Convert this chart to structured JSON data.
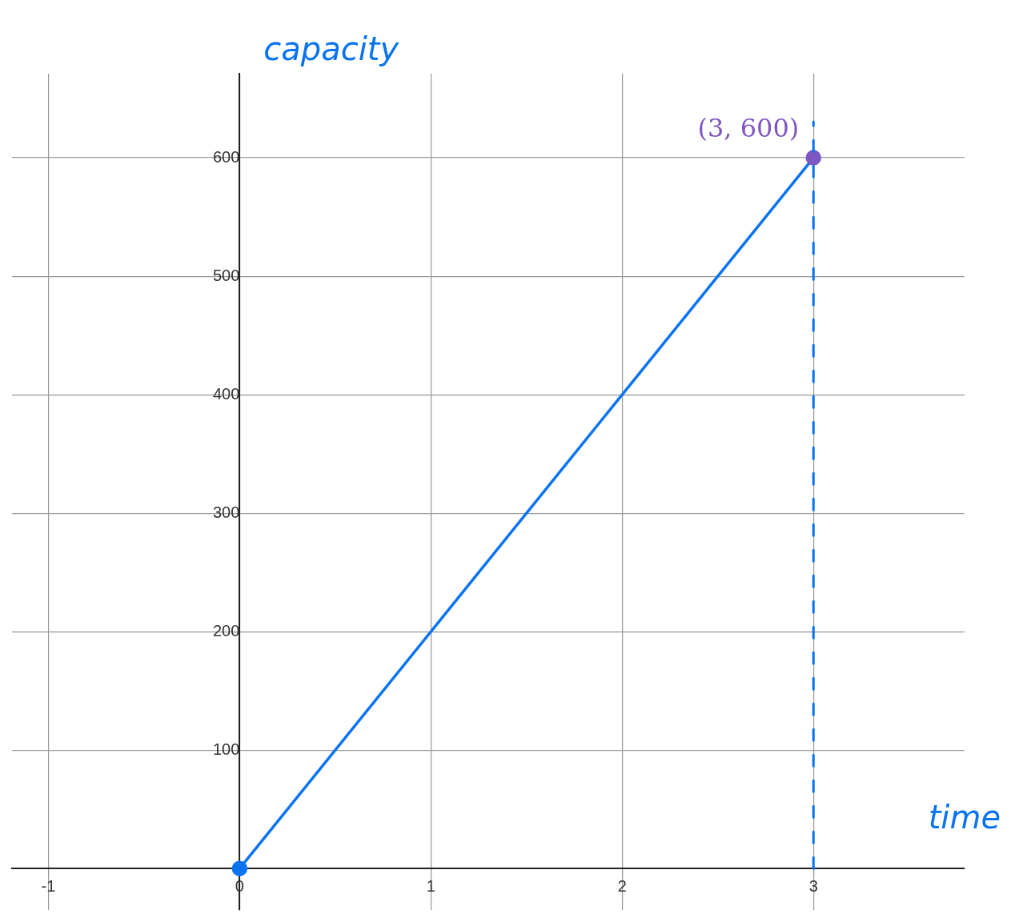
{
  "chart_data": {
    "type": "line",
    "xlabel": "time",
    "ylabel": "capacity",
    "x": [
      0,
      3
    ],
    "series": [
      {
        "color": "#0a74f0",
        "colors": [
          "#0a74f0",
          "#7e57c2"
        ],
        "values": [
          0,
          600
        ]
      }
    ],
    "xlim": [
      -1.19,
      3.79
    ],
    "ylim": [
      -35,
      671
    ],
    "xticks": [
      -1,
      0,
      1,
      2,
      3
    ],
    "yticks": [
      100,
      200,
      300,
      400,
      500,
      600
    ],
    "grid": true,
    "legend": false,
    "marker": "circle",
    "line_style": "solid",
    "annotations": [
      {
        "text": "(3, 600)",
        "x": 3,
        "y": 600
      }
    ],
    "ref_lines": [
      {
        "axis": "x",
        "value": 3,
        "color": "#0a74f0",
        "line_style": "dashed"
      }
    ]
  }
}
